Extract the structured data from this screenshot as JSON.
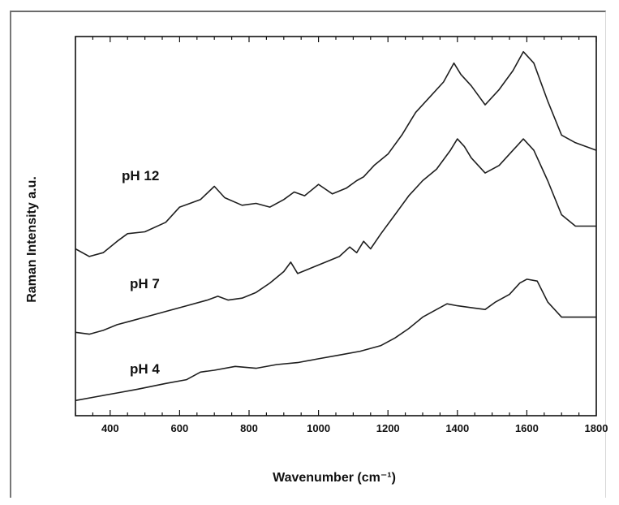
{
  "chart_data": {
    "type": "line",
    "xlabel": "Wavenumber (cm⁻¹)",
    "ylabel": "Raman Intensity a.u.",
    "xlim": [
      300,
      1800
    ],
    "ylim": [
      0,
      10
    ],
    "x_ticks": [
      400,
      600,
      800,
      1000,
      1200,
      1400,
      1600,
      1800
    ],
    "y_ticks_labeled": false,
    "grid": false,
    "series": [
      {
        "name": "pH 12",
        "points": [
          [
            300,
            4.4
          ],
          [
            340,
            4.2
          ],
          [
            380,
            4.3
          ],
          [
            420,
            4.6
          ],
          [
            450,
            4.8
          ],
          [
            500,
            4.85
          ],
          [
            560,
            5.1
          ],
          [
            600,
            5.5
          ],
          [
            630,
            5.6
          ],
          [
            660,
            5.7
          ],
          [
            700,
            6.05
          ],
          [
            730,
            5.75
          ],
          [
            780,
            5.55
          ],
          [
            820,
            5.6
          ],
          [
            860,
            5.5
          ],
          [
            900,
            5.7
          ],
          [
            930,
            5.9
          ],
          [
            960,
            5.8
          ],
          [
            1000,
            6.1
          ],
          [
            1040,
            5.85
          ],
          [
            1080,
            6.0
          ],
          [
            1110,
            6.2
          ],
          [
            1130,
            6.3
          ],
          [
            1160,
            6.6
          ],
          [
            1200,
            6.9
          ],
          [
            1240,
            7.4
          ],
          [
            1280,
            8.0
          ],
          [
            1320,
            8.4
          ],
          [
            1360,
            8.8
          ],
          [
            1390,
            9.3
          ],
          [
            1410,
            9.0
          ],
          [
            1440,
            8.7
          ],
          [
            1480,
            8.2
          ],
          [
            1520,
            8.6
          ],
          [
            1560,
            9.1
          ],
          [
            1590,
            9.6
          ],
          [
            1620,
            9.3
          ],
          [
            1660,
            8.3
          ],
          [
            1700,
            7.4
          ],
          [
            1740,
            7.2
          ],
          [
            1800,
            7.0
          ]
        ]
      },
      {
        "name": "pH 7",
        "points": [
          [
            300,
            2.2
          ],
          [
            340,
            2.15
          ],
          [
            380,
            2.25
          ],
          [
            420,
            2.4
          ],
          [
            460,
            2.5
          ],
          [
            500,
            2.6
          ],
          [
            560,
            2.75
          ],
          [
            620,
            2.9
          ],
          [
            680,
            3.05
          ],
          [
            710,
            3.15
          ],
          [
            740,
            3.05
          ],
          [
            780,
            3.1
          ],
          [
            820,
            3.25
          ],
          [
            860,
            3.5
          ],
          [
            900,
            3.8
          ],
          [
            920,
            4.05
          ],
          [
            940,
            3.75
          ],
          [
            980,
            3.9
          ],
          [
            1020,
            4.05
          ],
          [
            1060,
            4.2
          ],
          [
            1090,
            4.45
          ],
          [
            1110,
            4.3
          ],
          [
            1130,
            4.6
          ],
          [
            1150,
            4.4
          ],
          [
            1180,
            4.8
          ],
          [
            1220,
            5.3
          ],
          [
            1260,
            5.8
          ],
          [
            1300,
            6.2
          ],
          [
            1340,
            6.5
          ],
          [
            1380,
            7.0
          ],
          [
            1400,
            7.3
          ],
          [
            1420,
            7.1
          ],
          [
            1440,
            6.8
          ],
          [
            1480,
            6.4
          ],
          [
            1520,
            6.6
          ],
          [
            1560,
            7.0
          ],
          [
            1590,
            7.3
          ],
          [
            1620,
            7.0
          ],
          [
            1660,
            6.2
          ],
          [
            1700,
            5.3
          ],
          [
            1740,
            5.0
          ],
          [
            1800,
            5.0
          ]
        ]
      },
      {
        "name": "pH 4",
        "points": [
          [
            300,
            0.4
          ],
          [
            360,
            0.5
          ],
          [
            420,
            0.6
          ],
          [
            480,
            0.7
          ],
          [
            560,
            0.85
          ],
          [
            620,
            0.95
          ],
          [
            660,
            1.15
          ],
          [
            700,
            1.2
          ],
          [
            760,
            1.3
          ],
          [
            820,
            1.25
          ],
          [
            880,
            1.35
          ],
          [
            940,
            1.4
          ],
          [
            1000,
            1.5
          ],
          [
            1060,
            1.6
          ],
          [
            1120,
            1.7
          ],
          [
            1180,
            1.85
          ],
          [
            1220,
            2.05
          ],
          [
            1260,
            2.3
          ],
          [
            1300,
            2.6
          ],
          [
            1340,
            2.8
          ],
          [
            1370,
            2.95
          ],
          [
            1400,
            2.9
          ],
          [
            1440,
            2.85
          ],
          [
            1480,
            2.8
          ],
          [
            1510,
            3.0
          ],
          [
            1550,
            3.2
          ],
          [
            1580,
            3.5
          ],
          [
            1600,
            3.6
          ],
          [
            1630,
            3.55
          ],
          [
            1660,
            3.0
          ],
          [
            1700,
            2.6
          ],
          [
            1740,
            2.6
          ],
          [
            1800,
            2.6
          ]
        ]
      }
    ]
  }
}
